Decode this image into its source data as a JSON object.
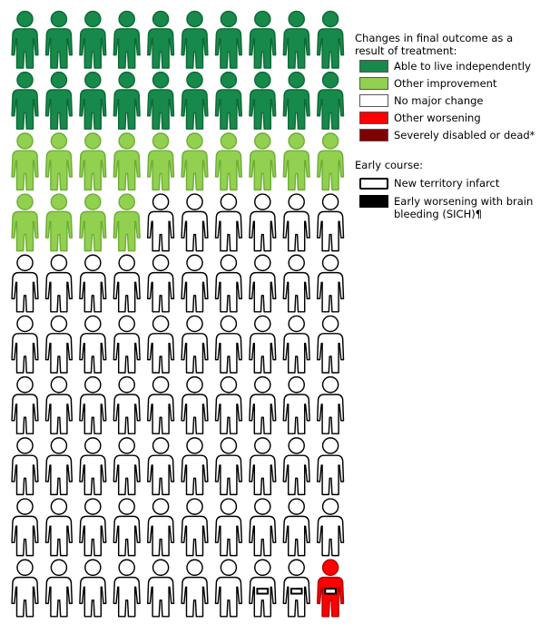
{
  "legend": {
    "outcome_title": "Changes in final outcome as a result of treatment:",
    "outcomes": [
      {
        "label": "Able to live independently",
        "color": "#17894b"
      },
      {
        "label": "Other improvement",
        "color": "#92d050"
      },
      {
        "label": "No major change",
        "color": "#ffffff"
      },
      {
        "label": "Other worsening",
        "color": "#ff0000"
      },
      {
        "label": "Severely disabled or dead*",
        "color": "#800000"
      }
    ],
    "early_title": "Early course:",
    "early": [
      {
        "label": "New territory infarct",
        "style": "outline"
      },
      {
        "label": "Early worsening with brain bleeding (SICH)¶",
        "style": "solid"
      }
    ]
  },
  "chart_data": {
    "type": "pictograph",
    "total": 100,
    "columns": 10,
    "categories": [
      "Able to live independently",
      "Other improvement",
      "No major change",
      "Other worsening",
      "Severely disabled or dead*"
    ],
    "values": [
      20,
      14,
      65,
      1,
      0
    ],
    "colors": [
      "#17894b",
      "#92d050",
      "#ffffff",
      "#ff0000",
      "#800000"
    ],
    "early_course": {
      "New territory infarct": [
        98
      ],
      "Early worsening with brain bleeding (SICH)¶": [
        99,
        100
      ]
    }
  }
}
